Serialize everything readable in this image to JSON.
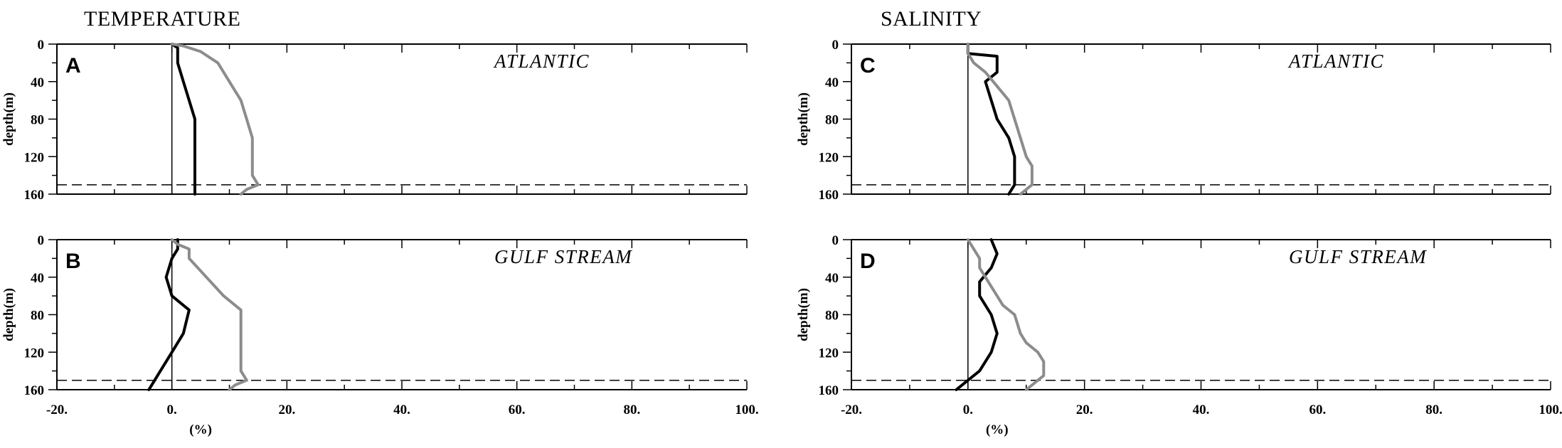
{
  "column_titles": [
    "TEMPERATURE",
    "SALINITY"
  ],
  "chart_data": [
    {
      "type": "line",
      "panel_letter": "A",
      "region": "ATLANTIC",
      "ylabel": "depth(m)",
      "xlabel": "",
      "xlim": [
        -20,
        100
      ],
      "ylim": [
        160,
        0
      ],
      "x_ticks": [
        "-20.",
        "0.",
        "20.",
        "40.",
        "60.",
        "80.",
        "100."
      ],
      "y_ticks": [
        "0",
        "40",
        "80",
        "120",
        "160"
      ],
      "reference_depth": 150,
      "series": [
        {
          "color": "#000000",
          "points": [
            [
              0,
              0
            ],
            [
              1,
              4
            ],
            [
              1,
              20
            ],
            [
              2,
              40
            ],
            [
              3,
              60
            ],
            [
              4,
              80
            ],
            [
              4,
              100
            ],
            [
              4,
              120
            ],
            [
              4,
              140
            ],
            [
              4,
              150
            ],
            [
              4,
              160
            ]
          ]
        },
        {
          "color": "#8c8c8c",
          "points": [
            [
              0,
              0
            ],
            [
              2,
              2
            ],
            [
              5,
              8
            ],
            [
              8,
              20
            ],
            [
              10,
              40
            ],
            [
              12,
              60
            ],
            [
              13,
              80
            ],
            [
              14,
              100
            ],
            [
              14,
              120
            ],
            [
              14,
              140
            ],
            [
              15,
              150
            ],
            [
              13,
              155
            ],
            [
              12,
              160
            ]
          ]
        }
      ]
    },
    {
      "type": "line",
      "panel_letter": "B",
      "region": "GULF STREAM",
      "ylabel": "depth(m)",
      "xlabel": "(%)",
      "xlim": [
        -20,
        100
      ],
      "ylim": [
        160,
        0
      ],
      "x_ticks": [
        "-20.",
        "0.",
        "20.",
        "40.",
        "60.",
        "80.",
        "100."
      ],
      "y_ticks": [
        "0",
        "40",
        "80",
        "120",
        "160"
      ],
      "reference_depth": 150,
      "series": [
        {
          "color": "#000000",
          "points": [
            [
              1,
              0
            ],
            [
              1,
              10
            ],
            [
              0,
              20
            ],
            [
              -1,
              40
            ],
            [
              0,
              60
            ],
            [
              3,
              75
            ],
            [
              2,
              100
            ],
            [
              0,
              120
            ],
            [
              -2,
              140
            ],
            [
              -3,
              150
            ],
            [
              -4,
              160
            ]
          ]
        },
        {
          "color": "#8c8c8c",
          "points": [
            [
              0,
              0
            ],
            [
              1,
              5
            ],
            [
              3,
              10
            ],
            [
              3,
              20
            ],
            [
              6,
              40
            ],
            [
              9,
              60
            ],
            [
              12,
              75
            ],
            [
              12,
              100
            ],
            [
              12,
              120
            ],
            [
              12,
              140
            ],
            [
              13,
              150
            ],
            [
              11,
              155
            ],
            [
              10,
              160
            ]
          ]
        }
      ]
    },
    {
      "type": "line",
      "panel_letter": "C",
      "region": "ATLANTIC",
      "ylabel": "depth(m)",
      "xlabel": "",
      "xlim": [
        -20,
        100
      ],
      "ylim": [
        160,
        0
      ],
      "x_ticks": [
        "-20.",
        "0.",
        "20.",
        "40.",
        "60.",
        "80.",
        "100."
      ],
      "y_ticks": [
        "0",
        "40",
        "80",
        "120",
        "160"
      ],
      "reference_depth": 150,
      "series": [
        {
          "color": "#000000",
          "points": [
            [
              0,
              0
            ],
            [
              0,
              10
            ],
            [
              5,
              13
            ],
            [
              5,
              30
            ],
            [
              3,
              40
            ],
            [
              4,
              60
            ],
            [
              5,
              80
            ],
            [
              7,
              100
            ],
            [
              8,
              120
            ],
            [
              8,
              140
            ],
            [
              8,
              150
            ],
            [
              7,
              160
            ]
          ]
        },
        {
          "color": "#8c8c8c",
          "points": [
            [
              0,
              0
            ],
            [
              0,
              10
            ],
            [
              1,
              20
            ],
            [
              3,
              30
            ],
            [
              5,
              45
            ],
            [
              7,
              60
            ],
            [
              8,
              80
            ],
            [
              9,
              100
            ],
            [
              10,
              120
            ],
            [
              11,
              130
            ],
            [
              11,
              150
            ],
            [
              10,
              155
            ],
            [
              9,
              160
            ]
          ]
        }
      ]
    },
    {
      "type": "line",
      "panel_letter": "D",
      "region": "GULF STREAM",
      "ylabel": "depth(m)",
      "xlabel": "(%)",
      "xlim": [
        -20,
        100
      ],
      "ylim": [
        160,
        0
      ],
      "x_ticks": [
        "-20.",
        "0.",
        "20.",
        "40.",
        "60.",
        "80.",
        "100."
      ],
      "y_ticks": [
        "0",
        "40",
        "80",
        "120",
        "160"
      ],
      "reference_depth": 150,
      "series": [
        {
          "color": "#000000",
          "points": [
            [
              4,
              0
            ],
            [
              5,
              15
            ],
            [
              4,
              30
            ],
            [
              2,
              45
            ],
            [
              2,
              60
            ],
            [
              4,
              80
            ],
            [
              5,
              100
            ],
            [
              4,
              120
            ],
            [
              2,
              140
            ],
            [
              0,
              150
            ],
            [
              -1,
              155
            ],
            [
              -2,
              160
            ]
          ]
        },
        {
          "color": "#8c8c8c",
          "points": [
            [
              0,
              0
            ],
            [
              1,
              10
            ],
            [
              2,
              20
            ],
            [
              2,
              30
            ],
            [
              4,
              50
            ],
            [
              6,
              70
            ],
            [
              8,
              80
            ],
            [
              9,
              100
            ],
            [
              10,
              110
            ],
            [
              12,
              120
            ],
            [
              13,
              130
            ],
            [
              13,
              145
            ],
            [
              12,
              150
            ],
            [
              10,
              160
            ]
          ]
        }
      ]
    }
  ]
}
